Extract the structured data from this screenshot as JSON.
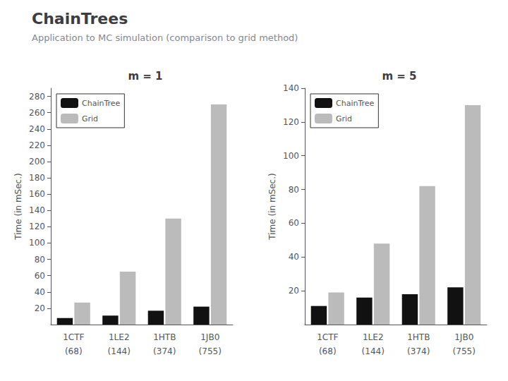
{
  "title": "ChainTrees",
  "subtitle": "Application to MC simulation (comparison to grid method)",
  "chart_data": [
    {
      "type": "bar",
      "title": "m = 1",
      "categories": [
        "1CTF",
        "1LE2",
        "1HTB",
        "1JB0"
      ],
      "annotations": [
        {
          "x": "1CTF",
          "text": "(68)"
        },
        {
          "x": "1LE2",
          "text": "(144)"
        },
        {
          "x": "1HTB",
          "text": "(374)"
        },
        {
          "x": "1JB0",
          "text": "(755)"
        }
      ],
      "ylabel": "Time (in mSec.)",
      "series": [
        {
          "name": "ChainTree",
          "color": "#111111",
          "values": [
            8,
            11,
            17,
            22
          ]
        },
        {
          "name": "Grid",
          "color": "#bbbbbb",
          "values": [
            27,
            65,
            130,
            270
          ]
        }
      ],
      "ylim": [
        0,
        290
      ],
      "yticks": [
        20,
        40,
        60,
        80,
        100,
        120,
        140,
        160,
        180,
        200,
        220,
        240,
        260,
        280
      ],
      "grid": false,
      "legend": "upper left"
    },
    {
      "type": "bar",
      "title": "m = 5",
      "categories": [
        "1CTF",
        "1LE2",
        "1HTB",
        "1JB0"
      ],
      "annotations": [
        {
          "x": "1CTF",
          "text": "(68)"
        },
        {
          "x": "1LE2",
          "text": "(144)"
        },
        {
          "x": "1HTB",
          "text": "(374)"
        },
        {
          "x": "1JB0",
          "text": "(755)"
        }
      ],
      "ylabel": "Time (in mSec.)",
      "series": [
        {
          "name": "ChainTree",
          "color": "#111111",
          "values": [
            11,
            16,
            18,
            22
          ]
        },
        {
          "name": "Grid",
          "color": "#bbbbbb",
          "values": [
            19,
            48,
            82,
            130
          ]
        }
      ],
      "ylim": [
        0,
        140
      ],
      "yticks": [
        20,
        40,
        60,
        80,
        100,
        120,
        140
      ],
      "grid": false,
      "legend": "upper left"
    }
  ]
}
